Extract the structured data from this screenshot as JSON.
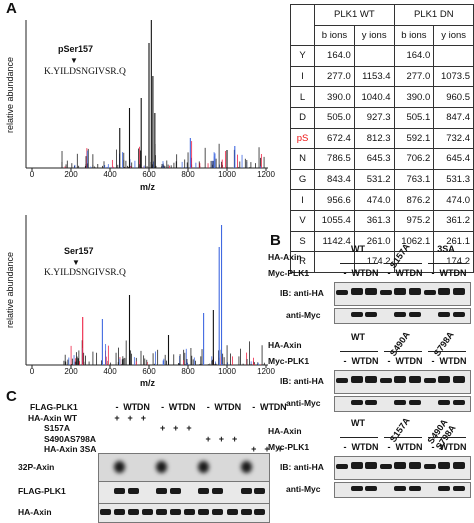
{
  "panels": {
    "a": "A",
    "b": "B",
    "c": "C"
  },
  "spectrum_top": {
    "site_label": "pSer157",
    "peptide": "K.YILDSNGIVSR.Q",
    "xlabel": "m/z",
    "ylabel": "relative abundance",
    "xticks": [
      "0",
      "200",
      "400",
      "600",
      "800",
      "1000",
      "1200"
    ]
  },
  "spectrum_bottom": {
    "site_label": "Ser157",
    "peptide": "K.YILDSNGIVSR.Q",
    "xlabel": "m/z",
    "ylabel": "relative abundance",
    "xticks": [
      "0",
      "200",
      "400",
      "600",
      "800",
      "1000",
      "1200"
    ]
  },
  "ion_table": {
    "groups": [
      "PLK1 WT",
      "PLK1 DN"
    ],
    "subheaders": [
      "b ions",
      "y ions",
      "b ions",
      "y ions"
    ],
    "rows": [
      {
        "res": "Y",
        "v": [
          "164.0",
          "",
          "164.0",
          ""
        ]
      },
      {
        "res": "I",
        "v": [
          "277.0",
          "1153.4",
          "277.0",
          "1073.5"
        ]
      },
      {
        "res": "L",
        "v": [
          "390.0",
          "1040.4",
          "390.0",
          "960.5"
        ]
      },
      {
        "res": "D",
        "v": [
          "505.0",
          "927.3",
          "505.1",
          "847.4"
        ]
      },
      {
        "res": "pS",
        "v": [
          "672.4",
          "812.3",
          "592.1",
          "732.4"
        ]
      },
      {
        "res": "N",
        "v": [
          "786.5",
          "645.3",
          "706.2",
          "645.4"
        ]
      },
      {
        "res": "G",
        "v": [
          "843.4",
          "531.2",
          "763.1",
          "531.3"
        ]
      },
      {
        "res": "I",
        "v": [
          "956.6",
          "474.0",
          "876.2",
          "474.0"
        ]
      },
      {
        "res": "V",
        "v": [
          "1055.4",
          "361.3",
          "975.2",
          "361.2"
        ]
      },
      {
        "res": "S",
        "v": [
          "1142.4",
          "261.0",
          "1062.1",
          "261.1"
        ]
      },
      {
        "res": "R",
        "v": [
          "",
          "174.2",
          "",
          "174.2"
        ]
      }
    ]
  },
  "panel_b": [
    {
      "axin_label": "HA-Axin",
      "groups": [
        "WT",
        "S157A",
        "3SA"
      ],
      "plk_label": "Myc-PLK1",
      "lanes": [
        "-",
        "WT",
        "DN",
        "-",
        "WT",
        "DN",
        "-",
        "WT",
        "DN"
      ],
      "ib1": "IB: anti-HA",
      "ib2": "anti-Myc"
    },
    {
      "axin_label": "HA-Axin",
      "groups": [
        "WT",
        "S490A",
        "S798A"
      ],
      "plk_label": "Myc-PLK1",
      "lanes": [
        "-",
        "WT",
        "DN",
        "-",
        "WT",
        "DN",
        "-",
        "WT",
        "DN"
      ],
      "ib1": "IB: anti-HA",
      "ib2": "anti-Myc"
    },
    {
      "axin_label": "HA-Axin",
      "groups": [
        "WT",
        "S157A",
        "S490A S798A"
      ],
      "plk_label": "Myc-PLK1",
      "lanes": [
        "-",
        "WT",
        "DN",
        "-",
        "WT",
        "DN",
        "-",
        "WT",
        "DN"
      ],
      "ib1": "IB: anti-HA",
      "ib2": "anti-Myc"
    }
  ],
  "panel_c": {
    "rows": [
      {
        "label": "FLAG-PLK1",
        "marks": [
          "-",
          "WT",
          "DN",
          "-",
          "WT",
          "DN",
          "-",
          "WT",
          "DN",
          "-",
          "WT",
          "DN"
        ]
      },
      {
        "label": "HA-Axin WT",
        "marks": [
          "+",
          "+",
          "+",
          "",
          "",
          "",
          "",
          "",
          "",
          "",
          "",
          ""
        ]
      },
      {
        "label": "S157A",
        "marks": [
          "",
          "",
          "",
          "+",
          "+",
          "+",
          "",
          "",
          "",
          "",
          "",
          ""
        ]
      },
      {
        "label": "S490AS798A",
        "marks": [
          "",
          "",
          "",
          "",
          "",
          "",
          "+",
          "+",
          "+",
          "",
          "",
          ""
        ]
      },
      {
        "label": "HA-Axin 3SA",
        "marks": [
          "",
          "",
          "",
          "",
          "",
          "",
          "",
          "",
          "",
          "+",
          "+",
          "+"
        ]
      }
    ],
    "blots": [
      "32P-Axin",
      "FLAG-PLK1",
      "HA-Axin"
    ]
  }
}
